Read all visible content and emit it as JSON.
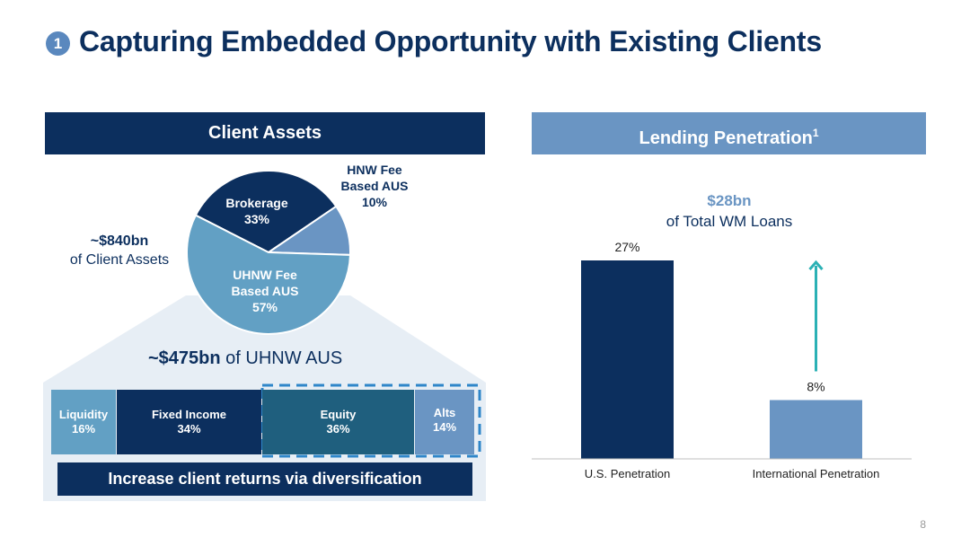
{
  "badge": "1",
  "title": "Capturing Embedded Opportunity with Existing Clients",
  "page_number": "8",
  "colors": {
    "navy": "#0c2f5e",
    "mid_blue": "#6a95c3",
    "light_blue": "#62a0c4",
    "teal": "#1f5f7e",
    "arrow": "#2bb1b5",
    "dash": "#2f86c9"
  },
  "left": {
    "header": "Client Assets",
    "total_value": "~$840bn",
    "total_label": "of Client Assets",
    "uhnw_value": "~$475bn",
    "uhnw_label": "of UHNW AUS",
    "banner": "Increase client returns via diversification",
    "segments": [
      {
        "label": "Liquidity",
        "pct_label": "16%"
      },
      {
        "label": "Fixed Income",
        "pct_label": "34%"
      },
      {
        "label": "Equity",
        "pct_label": "36%"
      },
      {
        "label": "Alts",
        "pct_label": "14%"
      }
    ]
  },
  "right": {
    "header": "Lending Penetration",
    "header_sup": "1",
    "callout_value": "$28bn",
    "callout_label": "of Total WM Loans"
  },
  "chart_data": [
    {
      "type": "pie",
      "labels": [
        "Brokerage",
        "HNW Fee Based AUS",
        "UHNW Fee Based AUS"
      ],
      "values": [
        33,
        10,
        57
      ],
      "label_lines": [
        [
          "Brokerage",
          "33%"
        ],
        [
          "HNW Fee",
          "Based AUS",
          "10%"
        ],
        [
          "UHNW Fee",
          "Based AUS",
          "57%"
        ]
      ],
      "colors": [
        "#0c2f5e",
        "#6a95c3",
        "#62a0c4"
      ]
    },
    {
      "type": "bar",
      "categories": [
        "U.S. Penetration",
        "International Penetration"
      ],
      "values": [
        27,
        8
      ],
      "data_labels": [
        "27%",
        "8%"
      ],
      "colors": [
        "#0c2f5e",
        "#6a95c3"
      ],
      "ylim": [
        0,
        27
      ]
    }
  ]
}
